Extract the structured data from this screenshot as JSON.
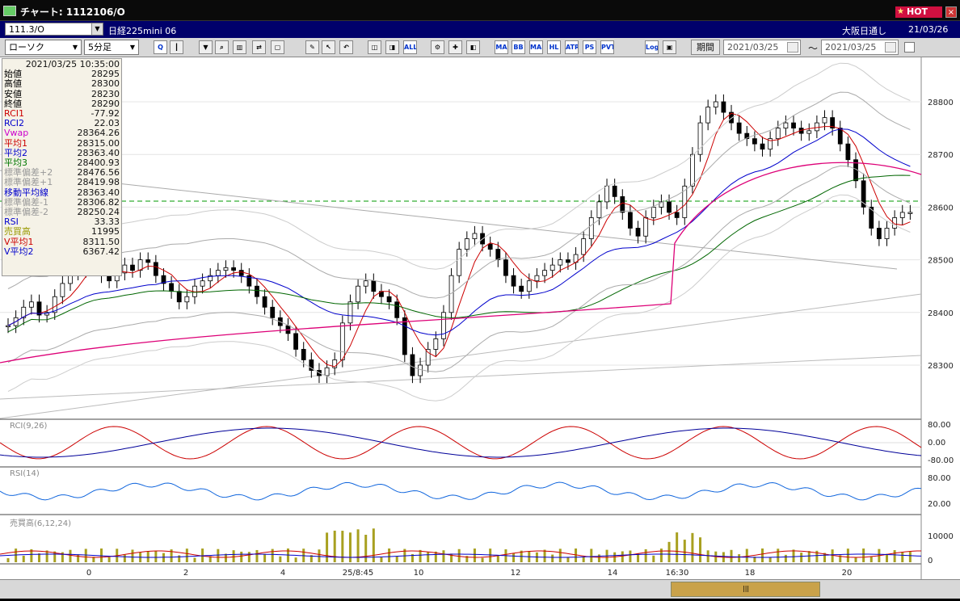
{
  "window": {
    "title": "チャート: 1112106/O",
    "hot_label": "HOT"
  },
  "info": {
    "symbol": "111.3/O",
    "name": "日経225mini 06",
    "exchange": "大阪日通し",
    "date": "21/03/26"
  },
  "toolbar": {
    "chart_type": "ローソク",
    "interval": "5分足",
    "period_label": "期間",
    "from_date": "2021/03/25",
    "separator": "〜",
    "to_date": "2021/03/25",
    "buttons": [
      {
        "label": "Q",
        "icon": "zoom-icon"
      },
      {
        "label": "┃",
        "icon": "cursor-icon"
      },
      {
        "label": "▼",
        "icon": "arrow-down-icon"
      },
      {
        "label": "⌕",
        "icon": "search-icon"
      },
      {
        "label": "▥",
        "icon": "bars-icon"
      },
      {
        "label": "⇄",
        "icon": "swap-icon"
      },
      {
        "label": "▢",
        "icon": "blank-icon"
      },
      {
        "label": "✎",
        "icon": "pen-icon"
      },
      {
        "label": "↖",
        "icon": "pointer-icon"
      },
      {
        "label": "↶",
        "icon": "undo-icon"
      },
      {
        "label": "◫",
        "icon": "candle-left-icon"
      },
      {
        "label": "◨",
        "icon": "candle-right-icon"
      },
      {
        "label": "ALL",
        "icon": "all-icon"
      },
      {
        "label": "⚙",
        "icon": "settings-icon"
      },
      {
        "label": "✚",
        "icon": "tool-icon"
      },
      {
        "label": "◧",
        "icon": "color-icon"
      },
      {
        "label": "MA",
        "icon": "ma-icon"
      },
      {
        "label": "BB",
        "icon": "bb-icon"
      },
      {
        "label": "MAE",
        "icon": "mae-icon"
      },
      {
        "label": "HL",
        "icon": "hl-icon"
      },
      {
        "label": "ATR",
        "icon": "atr-icon"
      },
      {
        "label": "PS",
        "icon": "ps-icon"
      },
      {
        "label": "PVT",
        "icon": "pvt-icon"
      },
      {
        "label": "Log",
        "icon": "log-icon"
      },
      {
        "label": "▣",
        "icon": "export-icon"
      }
    ]
  },
  "ohlc_panel": {
    "header": "2021/03/25 10:35:00",
    "rows": [
      {
        "label": "始値",
        "value": "28295",
        "color": "#000000"
      },
      {
        "label": "高値",
        "value": "28300",
        "color": "#000000"
      },
      {
        "label": "安値",
        "value": "28230",
        "color": "#000000"
      },
      {
        "label": "終値",
        "value": "28290",
        "color": "#000000"
      },
      {
        "label": "RCI1",
        "value": "-77.92",
        "color": "#cc0000"
      },
      {
        "label": "RCI2",
        "value": "22.03",
        "color": "#0000cc"
      },
      {
        "label": "Vwap",
        "value": "28364.26",
        "color": "#cc00cc"
      },
      {
        "label": "平均1",
        "value": "28315.00",
        "color": "#cc0000"
      },
      {
        "label": "平均2",
        "value": "28363.40",
        "color": "#0000cc"
      },
      {
        "label": "平均3",
        "value": "28400.93",
        "color": "#007700"
      },
      {
        "label": "標準偏差+2",
        "value": "28476.56",
        "color": "#999999"
      },
      {
        "label": "標準偏差+1",
        "value": "28419.98",
        "color": "#999999"
      },
      {
        "label": "移動平均線",
        "value": "28363.40",
        "color": "#0000cc"
      },
      {
        "label": "標準偏差-1",
        "value": "28306.82",
        "color": "#999999"
      },
      {
        "label": "標準偏差-2",
        "value": "28250.24",
        "color": "#999999"
      },
      {
        "label": "RSI",
        "value": "33.33",
        "color": "#0000cc"
      },
      {
        "label": "売買高",
        "value": "11995",
        "color": "#999900"
      },
      {
        "label": "V平均1",
        "value": "8311.50",
        "color": "#cc0000"
      },
      {
        "label": "V平均2",
        "value": "6367.42",
        "color": "#0000cc"
      }
    ]
  },
  "price_axis": [
    "28800",
    "28700",
    "28600",
    "28500",
    "28400",
    "28300"
  ],
  "rci_panel": {
    "label": "RCI(9,26)",
    "ticks": [
      "80.00",
      "0.00",
      "-80.00"
    ]
  },
  "rsi_panel": {
    "label": "RSI(14)",
    "ticks": [
      "80.00",
      "20.00"
    ]
  },
  "vol_panel": {
    "label": "売買高(6,12,24)",
    "ticks": [
      "10000",
      "0"
    ]
  },
  "time_axis": [
    "0",
    "2",
    "4",
    "25/8:45",
    "10",
    "12",
    "14",
    "16:30",
    "18",
    "20"
  ],
  "scroll_thumb": "|||",
  "chart_data": {
    "type": "candlestick",
    "series": [
      {
        "name": "price",
        "values": [
          28375,
          28390,
          28410,
          28420,
          28395,
          28400,
          28430,
          28455,
          28475,
          28480,
          28500,
          28490,
          28470,
          28460,
          28475,
          28490,
          28480,
          28500,
          28495,
          28470,
          28455,
          28440,
          28420,
          28430,
          28450,
          28460,
          28470,
          28480,
          28485,
          28480,
          28470,
          28450,
          28430,
          28410,
          28390,
          28375,
          28360,
          28330,
          28310,
          28290,
          28280,
          28295,
          28310,
          28380,
          28420,
          28450,
          28460,
          28440,
          28430,
          28420,
          28390,
          28320,
          28280,
          28300,
          28330,
          28350,
          28400,
          28470,
          28520,
          28540,
          28550,
          28530,
          28520,
          28500,
          28470,
          28450,
          28440,
          28460,
          28470,
          28480,
          28490,
          28500,
          28495,
          28510,
          28540,
          28580,
          28610,
          28640,
          28620,
          28590,
          28560,
          28545,
          28580,
          28600,
          28610,
          28590,
          28580,
          28640,
          28700,
          28760,
          28790,
          28800,
          28780,
          28760,
          28740,
          28730,
          28720,
          28710,
          28730,
          28750,
          28760,
          28750,
          28740,
          28745,
          28760,
          28770,
          28750,
          28720,
          28690,
          28650,
          28600,
          28560,
          28540,
          28560,
          28580,
          28590,
          28590
        ]
      }
    ]
  }
}
